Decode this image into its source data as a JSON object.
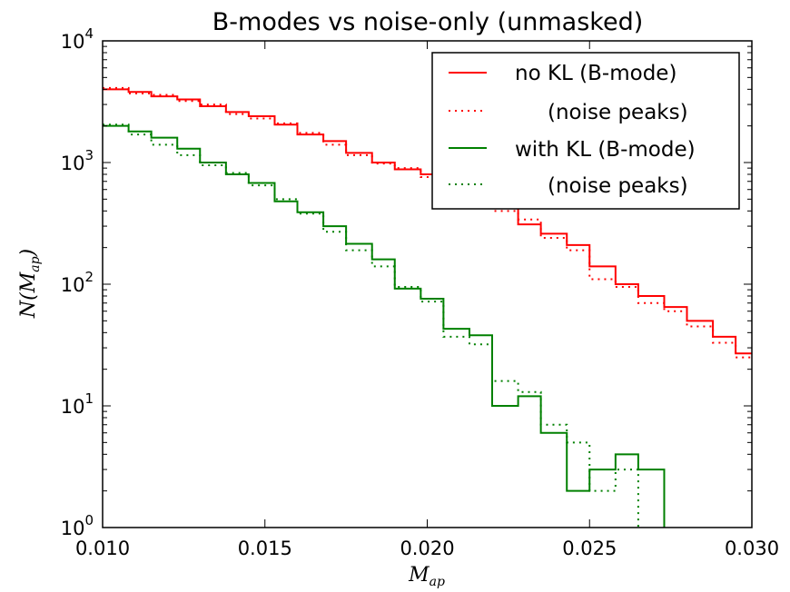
{
  "chart_data": {
    "type": "line",
    "title": "B-modes vs noise-only (unmasked)",
    "xlabel": "M",
    "xlabel_sub": "ap",
    "ylabel": "N(M",
    "ylabel_sub": "ap",
    "ylabel_close": ")",
    "xlim": [
      0.01,
      0.03
    ],
    "ylim": [
      1,
      10000
    ],
    "yscale": "log",
    "legend_position": "top-right",
    "x_ticks": [
      "0.010",
      "0.015",
      "0.020",
      "0.025",
      "0.030"
    ],
    "x_tick_values": [
      0.01,
      0.015,
      0.02,
      0.025,
      0.03
    ],
    "y_ticks": [
      {
        "value": 1,
        "base": "10",
        "exp": "0"
      },
      {
        "value": 10,
        "base": "10",
        "exp": "1"
      },
      {
        "value": 100,
        "base": "10",
        "exp": "2"
      },
      {
        "value": 1000,
        "base": "10",
        "exp": "3"
      },
      {
        "value": 10000,
        "base": "10",
        "exp": "4"
      }
    ],
    "x_edges": [
      0.01,
      0.0108,
      0.0115,
      0.0123,
      0.013,
      0.0138,
      0.0145,
      0.0153,
      0.016,
      0.0168,
      0.0175,
      0.0183,
      0.019,
      0.0198,
      0.0205,
      0.0213,
      0.022,
      0.0228,
      0.0235,
      0.0243,
      0.025,
      0.0258,
      0.0265,
      0.0273,
      0.028,
      0.0288,
      0.0295,
      0.0303
    ],
    "series": [
      {
        "name": "no KL (B-mode)",
        "color": "#ff0000",
        "style": "solid",
        "values": [
          4000,
          3800,
          3500,
          3300,
          2900,
          2600,
          2400,
          2050,
          1700,
          1500,
          1200,
          1000,
          880,
          800,
          600,
          500,
          420,
          310,
          260,
          210,
          140,
          100,
          80,
          65,
          50,
          37,
          27,
          22
        ]
      },
      {
        "name": "(noise peaks)",
        "color": "#ff0000",
        "style": "dotted",
        "values": [
          4100,
          3700,
          3600,
          3200,
          3000,
          2500,
          2300,
          2100,
          1750,
          1400,
          1150,
          980,
          900,
          760,
          620,
          480,
          400,
          340,
          240,
          190,
          110,
          95,
          70,
          60,
          45,
          33,
          25,
          20
        ]
      },
      {
        "name": "with KL (B-mode)",
        "color": "#008000",
        "style": "solid",
        "values": [
          2000,
          1800,
          1600,
          1300,
          1000,
          800,
          680,
          480,
          390,
          300,
          215,
          160,
          92,
          76,
          43,
          38,
          10,
          12,
          6,
          2,
          3,
          4,
          3
        ]
      },
      {
        "name": "(noise peaks)",
        "color": "#008000",
        "style": "dotted",
        "values": [
          2050,
          1700,
          1400,
          1150,
          950,
          820,
          650,
          500,
          380,
          270,
          190,
          140,
          95,
          72,
          37,
          32,
          16,
          13,
          7,
          5,
          2,
          3
        ]
      }
    ]
  },
  "legend": {
    "items": [
      {
        "label": "no KL (B-mode)",
        "color": "#ff0000",
        "style": "solid"
      },
      {
        "label": "(noise peaks)",
        "color": "#ff0000",
        "style": "dotted"
      },
      {
        "label": "with KL (B-mode)",
        "color": "#008000",
        "style": "solid"
      },
      {
        "label": "(noise peaks)",
        "color": "#008000",
        "style": "dotted"
      }
    ]
  }
}
